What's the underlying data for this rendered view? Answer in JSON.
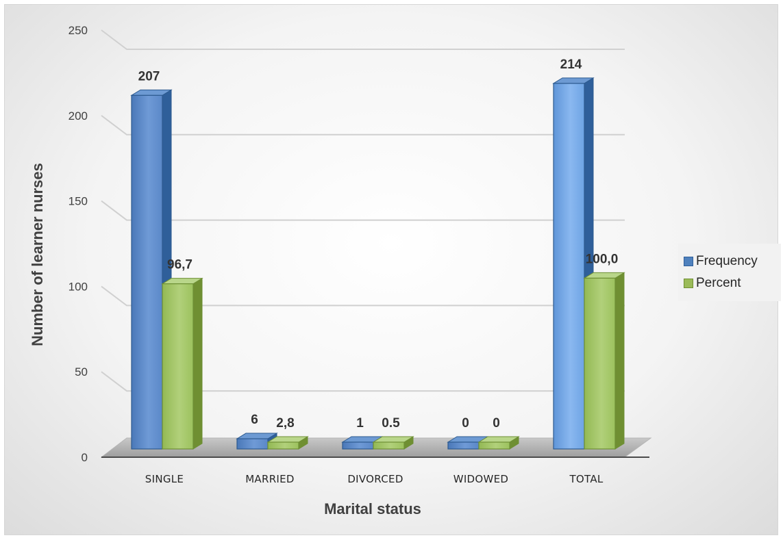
{
  "chart_data": {
    "type": "bar",
    "categories": [
      "SINGLE",
      "MARRIED",
      "DIVORCED",
      "WIDOWED",
      "TOTAL"
    ],
    "series": [
      {
        "name": "Frequency",
        "values": [
          207,
          6,
          1,
          0,
          214
        ],
        "labels": [
          "207",
          "6",
          "1",
          "0",
          "214"
        ],
        "color": "#4f81bd"
      },
      {
        "name": "Percent",
        "values": [
          96.7,
          2.8,
          0.5,
          0,
          100.0
        ],
        "labels": [
          "96,7",
          "2,8",
          "0.5",
          "0",
          "100,0"
        ],
        "color": "#9bbb59"
      }
    ],
    "xlabel": "Marital status",
    "ylabel": "Number of learner nurses",
    "ylim": [
      0,
      250
    ],
    "yticks": [
      "0",
      "50",
      "100",
      "150",
      "200",
      "250"
    ],
    "grid": true,
    "legend_position": "right",
    "style": "3d-clustered-column"
  }
}
